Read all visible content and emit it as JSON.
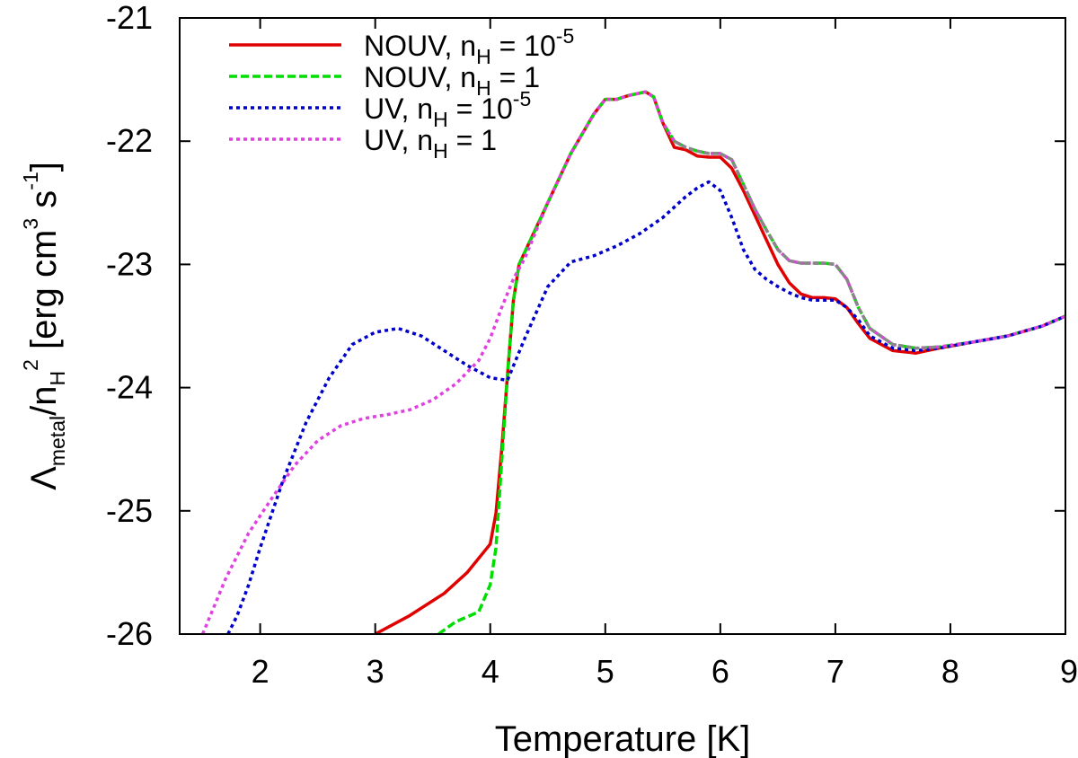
{
  "chart_data": {
    "type": "line",
    "xlabel": "Temperature [K]",
    "ylabel": {
      "symbol": "Λ",
      "sub": "metal",
      "mid": "/n",
      "sub2": "H",
      "sup2": "2",
      "unit_open": " [erg cm",
      "unit_sup1": "3",
      "unit_mid": " s",
      "unit_sup2": "-1",
      "unit_close": "]"
    },
    "xlim": [
      1.3,
      9
    ],
    "ylim": [
      -26,
      -21
    ],
    "xticks": [
      2,
      3,
      4,
      5,
      6,
      7,
      8,
      9
    ],
    "yticks": [
      -21,
      -22,
      -23,
      -24,
      -25,
      -26
    ],
    "grid": false,
    "legend_position": "top-left",
    "colors": {
      "nouv_low": "#e00000",
      "nouv_high": "#00dd00",
      "uv_low": "#0000cc",
      "uv_high": "#e040e0",
      "overlap": "#888888"
    },
    "series": [
      {
        "name": "NOUV, n_H = 10^-5",
        "label": {
          "pre": "NOUV, n",
          "sub": "H",
          "mid": " = 10",
          "sup": "-5"
        },
        "color": "#e00000",
        "style": "solid",
        "x": [
          3.0,
          3.3,
          3.6,
          3.8,
          4.0,
          4.05,
          4.1,
          4.15,
          4.2,
          4.25,
          4.3,
          4.5,
          4.7,
          4.9,
          5.0,
          5.1,
          5.2,
          5.35,
          5.42,
          5.5,
          5.6,
          5.7,
          5.8,
          5.9,
          6.0,
          6.1,
          6.2,
          6.3,
          6.4,
          6.5,
          6.6,
          6.7,
          6.8,
          6.9,
          7.0,
          7.1,
          7.2,
          7.3,
          7.5,
          7.7,
          7.9,
          8.2,
          8.5,
          8.8,
          9.0
        ],
        "y": [
          -26.0,
          -25.85,
          -25.67,
          -25.5,
          -25.27,
          -25.02,
          -24.5,
          -23.9,
          -23.3,
          -23.0,
          -22.9,
          -22.5,
          -22.1,
          -21.78,
          -21.66,
          -21.66,
          -21.63,
          -21.6,
          -21.64,
          -21.85,
          -22.05,
          -22.07,
          -22.12,
          -22.13,
          -22.13,
          -22.22,
          -22.4,
          -22.6,
          -22.8,
          -23.0,
          -23.15,
          -23.24,
          -23.27,
          -23.27,
          -23.28,
          -23.35,
          -23.48,
          -23.6,
          -23.7,
          -23.72,
          -23.68,
          -23.63,
          -23.58,
          -23.5,
          -23.42
        ]
      },
      {
        "name": "NOUV, n_H = 1",
        "label": {
          "pre": "NOUV, n",
          "sub": "H",
          "mid": " = 1",
          "sup": ""
        },
        "color": "#00dd00",
        "style": "dashed",
        "x": [
          3.55,
          3.7,
          3.9,
          4.0,
          4.05,
          4.1,
          4.15,
          4.2,
          4.25,
          4.3,
          4.5,
          4.7,
          4.9,
          5.0,
          5.1,
          5.2,
          5.35,
          5.42,
          5.5,
          5.6,
          5.7,
          5.8,
          5.9,
          6.0,
          6.1,
          6.2,
          6.3,
          6.4,
          6.5,
          6.6,
          6.7,
          6.8,
          6.9,
          7.0,
          7.1,
          7.2,
          7.3,
          7.5,
          7.7,
          7.9,
          8.2,
          8.5,
          8.8,
          9.0
        ],
        "y": [
          -26.0,
          -25.9,
          -25.82,
          -25.6,
          -25.3,
          -24.6,
          -23.9,
          -23.3,
          -23.0,
          -22.9,
          -22.5,
          -22.1,
          -21.78,
          -21.66,
          -21.66,
          -21.63,
          -21.6,
          -21.64,
          -21.85,
          -22.0,
          -22.05,
          -22.08,
          -22.1,
          -22.1,
          -22.15,
          -22.35,
          -22.55,
          -22.72,
          -22.88,
          -22.97,
          -22.99,
          -22.99,
          -22.99,
          -23.0,
          -23.12,
          -23.35,
          -23.52,
          -23.65,
          -23.68,
          -23.67,
          -23.63,
          -23.58,
          -23.5,
          -23.42
        ]
      },
      {
        "name": "UV, n_H = 10^-5",
        "label": {
          "pre": "UV, n",
          "sub": "H",
          "mid": " = 10",
          "sup": "-5"
        },
        "color": "#0000cc",
        "style": "dotted",
        "x": [
          1.72,
          1.8,
          1.9,
          2.0,
          2.2,
          2.4,
          2.6,
          2.8,
          3.0,
          3.2,
          3.4,
          3.6,
          3.8,
          4.0,
          4.15,
          4.3,
          4.5,
          4.7,
          4.9,
          5.1,
          5.3,
          5.5,
          5.7,
          5.8,
          5.9,
          6.0,
          6.1,
          6.2,
          6.3,
          6.4,
          6.5,
          6.6,
          6.7,
          6.8,
          6.9,
          7.0,
          7.1,
          7.2,
          7.3,
          7.5,
          7.7,
          7.9,
          8.2,
          8.5,
          8.8,
          9.0
        ],
        "y": [
          -26.0,
          -25.85,
          -25.6,
          -25.3,
          -24.75,
          -24.28,
          -23.92,
          -23.65,
          -23.55,
          -23.52,
          -23.58,
          -23.7,
          -23.82,
          -23.92,
          -23.94,
          -23.6,
          -23.18,
          -22.98,
          -22.93,
          -22.85,
          -22.75,
          -22.62,
          -22.45,
          -22.38,
          -22.33,
          -22.4,
          -22.62,
          -22.88,
          -23.04,
          -23.12,
          -23.18,
          -23.23,
          -23.27,
          -23.29,
          -23.29,
          -23.29,
          -23.35,
          -23.45,
          -23.58,
          -23.68,
          -23.7,
          -23.68,
          -23.63,
          -23.58,
          -23.5,
          -23.42
        ]
      },
      {
        "name": "UV, n_H = 1",
        "label": {
          "pre": "UV, n",
          "sub": "H",
          "mid": " = 1",
          "sup": ""
        },
        "color": "#e040e0",
        "style": "dotted",
        "x": [
          1.5,
          1.7,
          1.9,
          2.1,
          2.3,
          2.5,
          2.7,
          2.9,
          3.1,
          3.3,
          3.5,
          3.7,
          3.9,
          4.0,
          4.1,
          4.2,
          4.3,
          4.5,
          4.7,
          4.9,
          5.0,
          5.1,
          5.2,
          5.35,
          5.42,
          5.5,
          5.6,
          5.7,
          5.8,
          5.9,
          6.0,
          6.1,
          6.2,
          6.3,
          6.4,
          6.5,
          6.6,
          6.7,
          6.8,
          6.9,
          7.0,
          7.1,
          7.2,
          7.3,
          7.5,
          7.7,
          7.9,
          8.2,
          8.5,
          8.8,
          9.0
        ],
        "y": [
          -26.0,
          -25.55,
          -25.18,
          -24.9,
          -24.63,
          -24.43,
          -24.31,
          -24.25,
          -24.22,
          -24.18,
          -24.1,
          -23.97,
          -23.78,
          -23.6,
          -23.35,
          -23.12,
          -22.95,
          -22.5,
          -22.1,
          -21.78,
          -21.66,
          -21.66,
          -21.63,
          -21.6,
          -21.64,
          -21.85,
          -22.0,
          -22.05,
          -22.08,
          -22.1,
          -22.1,
          -22.15,
          -22.35,
          -22.55,
          -22.72,
          -22.88,
          -22.97,
          -22.99,
          -22.99,
          -22.99,
          -23.0,
          -23.12,
          -23.35,
          -23.52,
          -23.65,
          -23.68,
          -23.67,
          -23.63,
          -23.58,
          -23.5,
          -23.42
        ]
      }
    ]
  }
}
